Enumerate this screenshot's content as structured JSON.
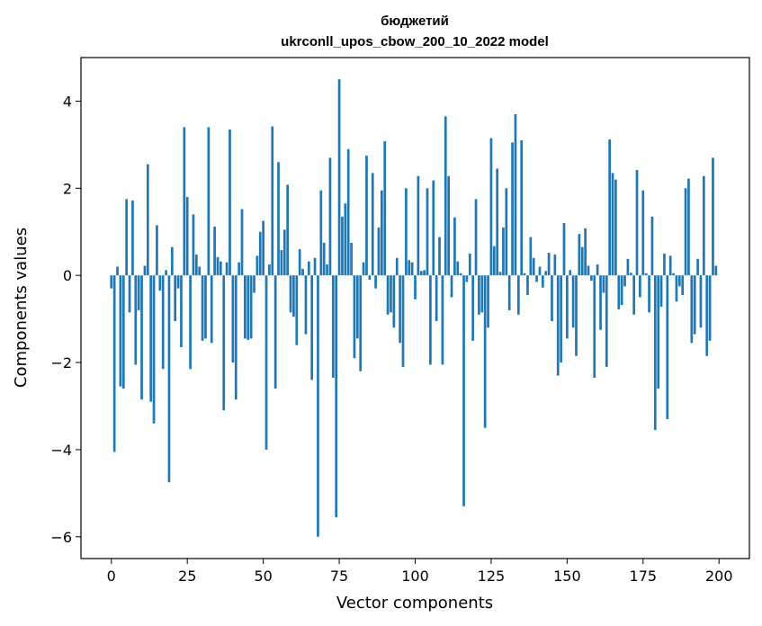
{
  "chart_data": {
    "type": "bar",
    "title": "бюджетий",
    "subtitle": "ukrconll_upos_cbow_200_10_2022 model",
    "xlabel": "Vector components",
    "ylabel": "Components values",
    "xlim": [
      -10,
      210
    ],
    "ylim": [
      -6.5,
      5.0
    ],
    "xticks": [
      0,
      25,
      50,
      75,
      100,
      125,
      150,
      175,
      200
    ],
    "yticks": [
      -6,
      -4,
      -2,
      0,
      2,
      4
    ],
    "xtick_labels": [
      "0",
      "25",
      "50",
      "75",
      "100",
      "125",
      "150",
      "175",
      "200"
    ],
    "ytick_labels": [
      "−6",
      "−4",
      "−2",
      "0",
      "2",
      "4"
    ],
    "bar_color": "#1f77b4",
    "x": [
      0,
      1,
      2,
      3,
      4,
      5,
      6,
      7,
      8,
      9,
      10,
      11,
      12,
      13,
      14,
      15,
      16,
      17,
      18,
      19,
      20,
      21,
      22,
      23,
      24,
      25,
      26,
      27,
      28,
      29,
      30,
      31,
      32,
      33,
      34,
      35,
      36,
      37,
      38,
      39,
      40,
      41,
      42,
      43,
      44,
      45,
      46,
      47,
      48,
      49,
      50,
      51,
      52,
      53,
      54,
      55,
      56,
      57,
      58,
      59,
      60,
      61,
      62,
      63,
      64,
      65,
      66,
      67,
      68,
      69,
      70,
      71,
      72,
      73,
      74,
      75,
      76,
      77,
      78,
      79,
      80,
      81,
      82,
      83,
      84,
      85,
      86,
      87,
      88,
      89,
      90,
      91,
      92,
      93,
      94,
      95,
      96,
      97,
      98,
      99,
      100,
      101,
      102,
      103,
      104,
      105,
      106,
      107,
      108,
      109,
      110,
      111,
      112,
      113,
      114,
      115,
      116,
      117,
      118,
      119,
      120,
      121,
      122,
      123,
      124,
      125,
      126,
      127,
      128,
      129,
      130,
      131,
      132,
      133,
      134,
      135,
      136,
      137,
      138,
      139,
      140,
      141,
      142,
      143,
      144,
      145,
      146,
      147,
      148,
      149,
      150,
      151,
      152,
      153,
      154,
      155,
      156,
      157,
      158,
      159,
      160,
      161,
      162,
      163,
      164,
      165,
      166,
      167,
      168,
      169,
      170,
      171,
      172,
      173,
      174,
      175,
      176,
      177,
      178,
      179,
      180,
      181,
      182,
      183,
      184,
      185,
      186,
      187,
      188,
      189,
      190,
      191,
      192,
      193,
      194,
      195,
      196,
      197,
      198,
      199
    ],
    "values": [
      -0.3,
      -4.05,
      0.2,
      -2.55,
      -2.6,
      1.75,
      -0.85,
      1.72,
      -2.05,
      -0.8,
      -2.85,
      0.22,
      2.55,
      -2.9,
      -3.4,
      1.15,
      -0.35,
      -2.15,
      0.12,
      -4.75,
      0.65,
      -1.05,
      -0.3,
      -1.65,
      3.4,
      1.8,
      -2.15,
      1.4,
      0.48,
      0.2,
      -1.5,
      -1.45,
      3.4,
      -1.55,
      1.12,
      0.42,
      0.32,
      -3.1,
      0.3,
      3.35,
      -2.0,
      -2.85,
      0.3,
      1.52,
      -1.45,
      -1.48,
      -1.45,
      -0.4,
      0.45,
      1.0,
      1.25,
      -4.0,
      0.25,
      3.42,
      -2.6,
      2.6,
      0.58,
      1.05,
      2.08,
      -0.85,
      -0.95,
      -1.6,
      0.6,
      0.15,
      -1.35,
      0.32,
      -2.4,
      0.4,
      -6.0,
      1.95,
      0.75,
      0.25,
      2.7,
      -2.35,
      -5.55,
      4.5,
      1.35,
      1.65,
      2.9,
      0.75,
      -1.9,
      -1.45,
      -2.2,
      0.3,
      2.75,
      -0.1,
      2.35,
      -0.3,
      1.1,
      1.95,
      3.08,
      -0.9,
      -0.85,
      -1.2,
      0.4,
      -1.55,
      -2.1,
      2.0,
      0.35,
      0.3,
      -0.55,
      2.28,
      0.1,
      0.12,
      2.0,
      -2.05,
      2.18,
      -1.05,
      0.88,
      -2.05,
      3.65,
      2.28,
      -0.5,
      1.33,
      0.32,
      0.05,
      -5.3,
      -0.15,
      0.5,
      -1.5,
      1.75,
      -0.9,
      -0.85,
      -3.5,
      -1.2,
      3.15,
      0.67,
      2.45,
      0.08,
      1.1,
      2.0,
      -0.8,
      3.05,
      3.7,
      -0.9,
      3.1,
      0.05,
      -0.45,
      0.88,
      0.4,
      -0.15,
      0.2,
      -0.28,
      0.1,
      0.52,
      -1.05,
      0.48,
      -2.3,
      -2.0,
      1.2,
      -1.45,
      0.12,
      -1.2,
      -1.85,
      0.95,
      0.65,
      1.08,
      0.22,
      -0.12,
      -2.35,
      0.25,
      -1.25,
      -0.4,
      -2.1,
      3.12,
      2.35,
      2.2,
      -0.78,
      -0.68,
      -0.25,
      0.38,
      0.06,
      -0.9,
      2.42,
      -0.5,
      1.95,
      0.05,
      -0.85,
      1.35,
      -3.55,
      -2.6,
      -0.72,
      0.5,
      -3.3,
      0.45,
      0.05,
      -0.6,
      -0.25,
      -0.45,
      2.0,
      2.22,
      -1.55,
      -1.35,
      0.38,
      -1.2,
      2.28,
      -1.85,
      -1.5,
      2.7,
      0.22
    ]
  }
}
